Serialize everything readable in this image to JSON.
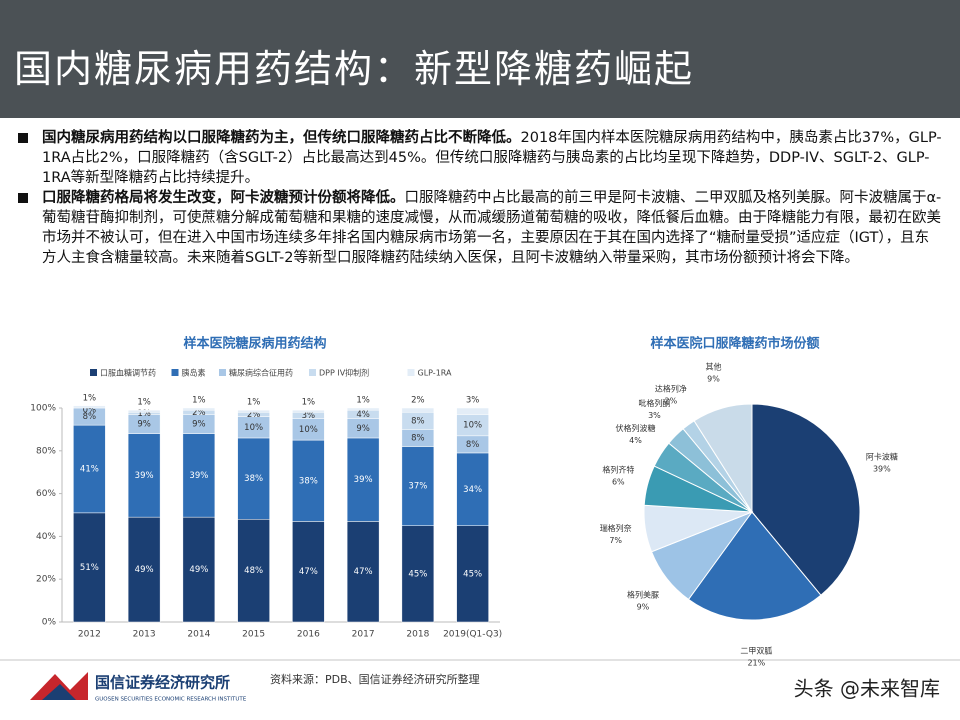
{
  "header": {
    "title": "国内糖尿病用药结构：新型降糖药崛起"
  },
  "bullets": [
    {
      "bold": "国内糖尿病用药结构以口服降糖药为主，但传统口服降糖药占比不断降低。",
      "text": "2018年国内样本医院糖尿病用药结构中，胰岛素占比37%，GLP-1RA占比2%，口服降糖药（含SGLT-2）占比最高达到45%。但传统口服降糖药与胰岛素的占比均呈现下降趋势，DDP-IV、SGLT-2、GLP-1RA等新型降糖药占比持续提升。"
    },
    {
      "bold": "口服降糖药格局将发生改变，阿卡波糖预计份额将降低。",
      "text": "口服降糖药中占比最高的前三甲是阿卡波糖、二甲双胍及格列美脲。阿卡波糖属于α-葡萄糖苷酶抑制剂，可使蔗糖分解成葡萄糖和果糖的速度减慢，从而减缓肠道葡萄糖的吸收，降低餐后血糖。由于降糖能力有限，最初在欧美市场并不被认可，但在进入中国市场连续多年排名国内糖尿病市场第一名，主要原因在于其在国内选择了“糖耐量受损”适应症（IGT），且东方人主食含糖量较高。未来随着SGLT-2等新型口服降糖药陆续纳入医保，且阿卡波糖纳入带量采购，其市场份额预计将会下降。"
    }
  ],
  "chart_data": [
    {
      "type": "bar",
      "stacked": true,
      "title": "样本医院糖尿病用药结构",
      "categories": [
        "2012",
        "2013",
        "2014",
        "2015",
        "2016",
        "2017",
        "2018",
        "2019(Q1-Q3)"
      ],
      "ylim": [
        0,
        100
      ],
      "yticks": [
        {
          "value": 0,
          "label": "0%"
        },
        {
          "value": 20,
          "label": "20%"
        },
        {
          "value": 40,
          "label": "40%"
        },
        {
          "value": 60,
          "label": "60%"
        },
        {
          "value": 80,
          "label": "80%"
        },
        {
          "value": 100,
          "label": "100%"
        }
      ],
      "grid": false,
      "legend": "top",
      "series": [
        {
          "name": "口服血糖调节药",
          "color": "#1b3f73",
          "values": [
            51,
            49,
            49,
            48,
            47,
            47,
            45,
            45
          ],
          "value_labels": [
            "51%",
            "49%",
            "49%",
            "48%",
            "47%",
            "47%",
            "45%",
            "45%"
          ]
        },
        {
          "name": "胰岛素",
          "color": "#2f6eb5",
          "values": [
            41,
            39,
            39,
            38,
            38,
            39,
            37,
            34
          ],
          "value_labels": [
            "41%",
            "39%",
            "39%",
            "38%",
            "38%",
            "39%",
            "37%",
            "34%"
          ]
        },
        {
          "name": "糖尿病综合征用药",
          "color": "#a9c7e6",
          "values": [
            8,
            9,
            9,
            10,
            10,
            9,
            8,
            8
          ],
          "value_labels": [
            "8%",
            "9%",
            "9%",
            "10%",
            "10%",
            "9%",
            "8%",
            "8%"
          ]
        },
        {
          "name": "DPP IV抑制剂",
          "color": "#c8dcef",
          "values": [
            0,
            1,
            2,
            2,
            3,
            4,
            8,
            10
          ],
          "value_labels": [
            "0%",
            "1%",
            "2%",
            "2%",
            "3%",
            "4%",
            "8%",
            "10%"
          ]
        },
        {
          "name": "GLP-1RA",
          "color": "#e3edf7",
          "values": [
            1,
            1,
            1,
            1,
            1,
            1,
            2,
            3
          ],
          "value_labels": [
            "1%",
            "1%",
            "1%",
            "1%",
            "1%",
            "1%",
            "2%",
            "3%"
          ]
        }
      ]
    },
    {
      "type": "pie",
      "title": "样本医院口服降糖药市场份额",
      "categories": [
        "阿卡波糖",
        "二甲双胍",
        "格列美脲",
        "瑞格列奈",
        "格列齐特",
        "伏格列波糖",
        "吡格列酮",
        "达格列净",
        "其他"
      ],
      "values": [
        39,
        21,
        9,
        7,
        6,
        4,
        3,
        2,
        9
      ],
      "value_labels": [
        "39%",
        "21%",
        "9%",
        "7%",
        "6%",
        "4%",
        "3%",
        "2%",
        "9%"
      ],
      "colors": [
        "#1b3f73",
        "#2f6eb5",
        "#9dc3e6",
        "#dce8f5",
        "#3a9bb3",
        "#5aaac2",
        "#8dc0d8",
        "#b3d2e6",
        "#c9dbe9"
      ]
    }
  ],
  "footer": {
    "source": "资料来源：PDB、国信证券经济研究所整理",
    "org": "国信证券经济研究所",
    "org_en": "GUOSEN SECURITIES ECONOMIC RESEARCH INSTITUTE",
    "watermark": "头条 @未来智库"
  }
}
